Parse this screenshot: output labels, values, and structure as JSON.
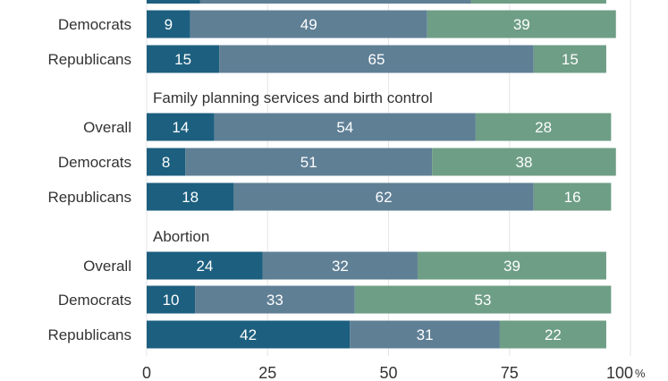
{
  "chart_data": {
    "type": "bar",
    "orientation": "horizontal",
    "stacked": true,
    "xlim": [
      0,
      100
    ],
    "x_ticks": [
      "0",
      "25",
      "50",
      "75",
      "100"
    ],
    "x_unit": "%",
    "grid": true,
    "colors": [
      "#1c5f7f",
      "#5f7f95",
      "#6e9e86"
    ],
    "groups": [
      {
        "label": "",
        "partial": true,
        "rows": [
          {
            "label": "Democrats",
            "values": [
              9,
              49,
              39
            ]
          },
          {
            "label": "Republicans",
            "values": [
              15,
              65,
              15
            ]
          }
        ]
      },
      {
        "label": "Family planning services and birth control",
        "rows": [
          {
            "label": "Overall",
            "values": [
              14,
              54,
              28
            ]
          },
          {
            "label": "Democrats",
            "values": [
              8,
              51,
              38
            ]
          },
          {
            "label": "Republicans",
            "values": [
              18,
              62,
              16
            ]
          }
        ]
      },
      {
        "label": "Abortion",
        "rows": [
          {
            "label": "Overall",
            "values": [
              24,
              32,
              39
            ]
          },
          {
            "label": "Democrats",
            "values": [
              10,
              33,
              53
            ]
          },
          {
            "label": "Republicans",
            "values": [
              42,
              31,
              22
            ]
          }
        ]
      }
    ],
    "top_partial_bar": [
      11,
      56,
      28
    ]
  }
}
